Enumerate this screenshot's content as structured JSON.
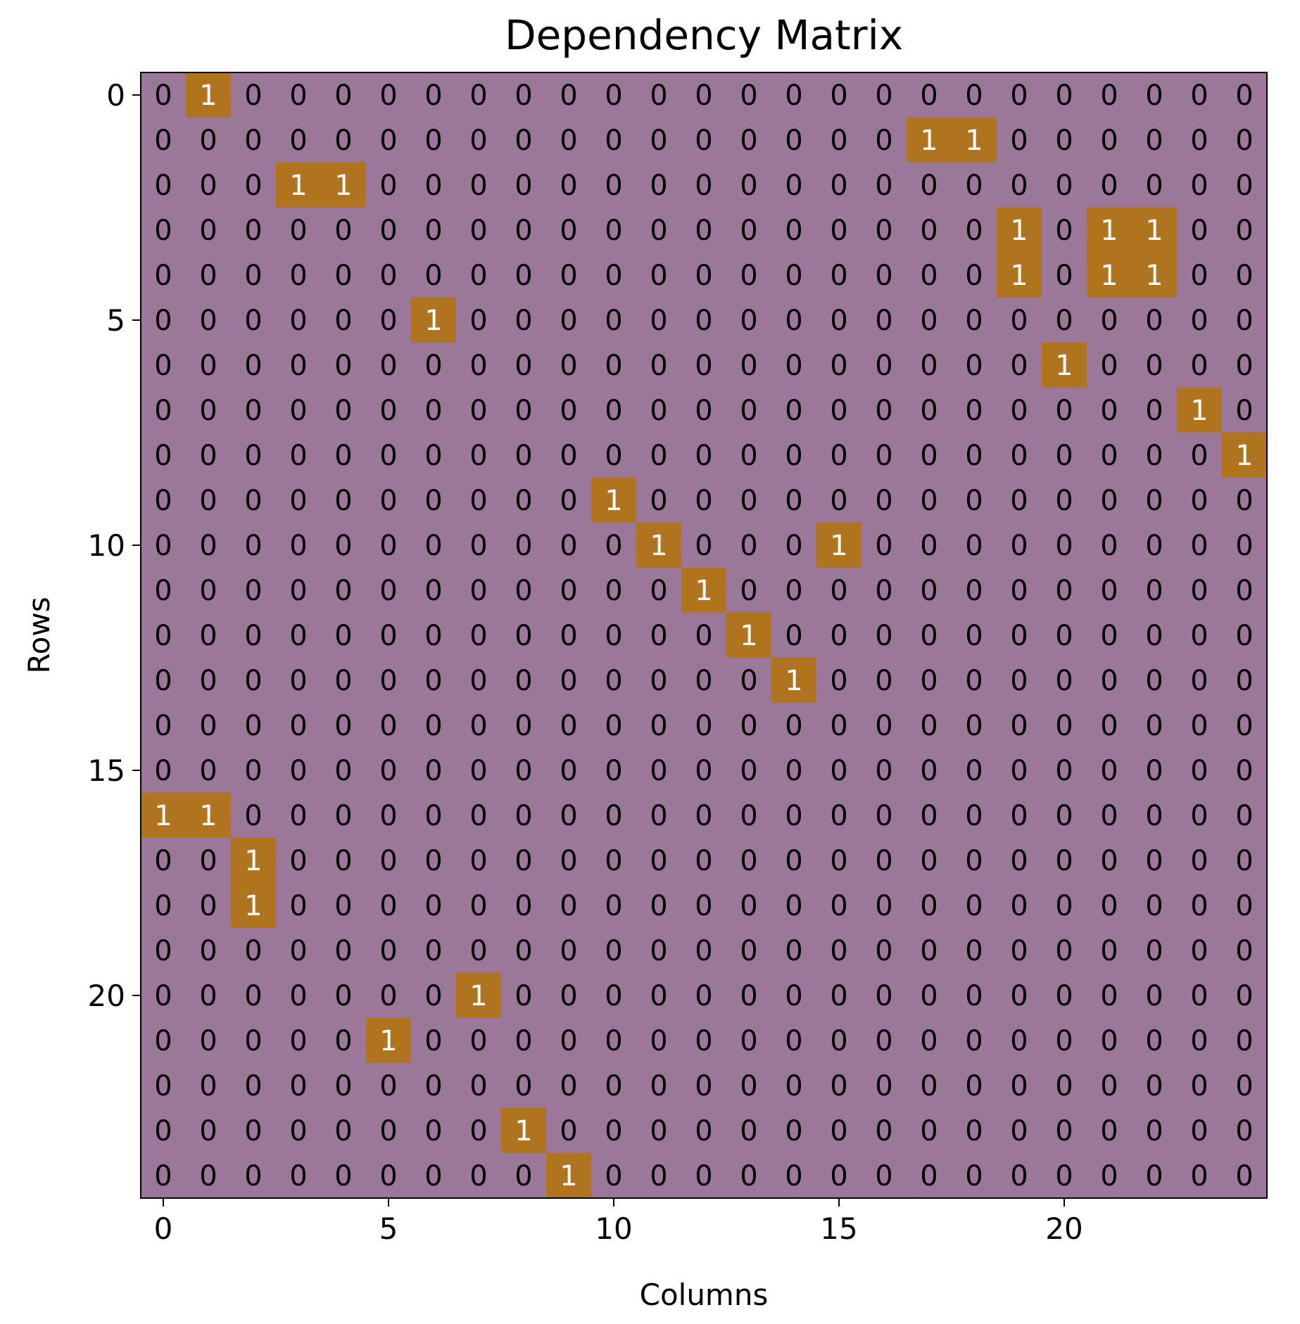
{
  "chart_data": {
    "type": "heatmap",
    "title": "Dependency Matrix",
    "xlabel": "Columns",
    "ylabel": "Rows",
    "x_ticks": [
      "0",
      "5",
      "10",
      "15",
      "20"
    ],
    "y_ticks": [
      "0",
      "5",
      "10",
      "15",
      "20"
    ],
    "n_rows": 25,
    "n_cols": 25,
    "grid": false,
    "colors": {
      "zero": "#9b7799",
      "one": "#b0741e",
      "text_zero": "#000000",
      "text_one": "#ffffff"
    },
    "values": [
      [
        0,
        1,
        0,
        0,
        0,
        0,
        0,
        0,
        0,
        0,
        0,
        0,
        0,
        0,
        0,
        0,
        0,
        0,
        0,
        0,
        0,
        0,
        0,
        0,
        0
      ],
      [
        0,
        0,
        0,
        0,
        0,
        0,
        0,
        0,
        0,
        0,
        0,
        0,
        0,
        0,
        0,
        0,
        0,
        1,
        1,
        0,
        0,
        0,
        0,
        0,
        0
      ],
      [
        0,
        0,
        0,
        1,
        1,
        0,
        0,
        0,
        0,
        0,
        0,
        0,
        0,
        0,
        0,
        0,
        0,
        0,
        0,
        0,
        0,
        0,
        0,
        0,
        0
      ],
      [
        0,
        0,
        0,
        0,
        0,
        0,
        0,
        0,
        0,
        0,
        0,
        0,
        0,
        0,
        0,
        0,
        0,
        0,
        0,
        1,
        0,
        1,
        1,
        0,
        0
      ],
      [
        0,
        0,
        0,
        0,
        0,
        0,
        0,
        0,
        0,
        0,
        0,
        0,
        0,
        0,
        0,
        0,
        0,
        0,
        0,
        1,
        0,
        1,
        1,
        0,
        0
      ],
      [
        0,
        0,
        0,
        0,
        0,
        0,
        1,
        0,
        0,
        0,
        0,
        0,
        0,
        0,
        0,
        0,
        0,
        0,
        0,
        0,
        0,
        0,
        0,
        0,
        0
      ],
      [
        0,
        0,
        0,
        0,
        0,
        0,
        0,
        0,
        0,
        0,
        0,
        0,
        0,
        0,
        0,
        0,
        0,
        0,
        0,
        0,
        1,
        0,
        0,
        0,
        0
      ],
      [
        0,
        0,
        0,
        0,
        0,
        0,
        0,
        0,
        0,
        0,
        0,
        0,
        0,
        0,
        0,
        0,
        0,
        0,
        0,
        0,
        0,
        0,
        0,
        1,
        0
      ],
      [
        0,
        0,
        0,
        0,
        0,
        0,
        0,
        0,
        0,
        0,
        0,
        0,
        0,
        0,
        0,
        0,
        0,
        0,
        0,
        0,
        0,
        0,
        0,
        0,
        1
      ],
      [
        0,
        0,
        0,
        0,
        0,
        0,
        0,
        0,
        0,
        0,
        1,
        0,
        0,
        0,
        0,
        0,
        0,
        0,
        0,
        0,
        0,
        0,
        0,
        0,
        0
      ],
      [
        0,
        0,
        0,
        0,
        0,
        0,
        0,
        0,
        0,
        0,
        0,
        1,
        0,
        0,
        0,
        1,
        0,
        0,
        0,
        0,
        0,
        0,
        0,
        0,
        0
      ],
      [
        0,
        0,
        0,
        0,
        0,
        0,
        0,
        0,
        0,
        0,
        0,
        0,
        1,
        0,
        0,
        0,
        0,
        0,
        0,
        0,
        0,
        0,
        0,
        0,
        0
      ],
      [
        0,
        0,
        0,
        0,
        0,
        0,
        0,
        0,
        0,
        0,
        0,
        0,
        0,
        1,
        0,
        0,
        0,
        0,
        0,
        0,
        0,
        0,
        0,
        0,
        0
      ],
      [
        0,
        0,
        0,
        0,
        0,
        0,
        0,
        0,
        0,
        0,
        0,
        0,
        0,
        0,
        1,
        0,
        0,
        0,
        0,
        0,
        0,
        0,
        0,
        0,
        0
      ],
      [
        0,
        0,
        0,
        0,
        0,
        0,
        0,
        0,
        0,
        0,
        0,
        0,
        0,
        0,
        0,
        0,
        0,
        0,
        0,
        0,
        0,
        0,
        0,
        0,
        0
      ],
      [
        0,
        0,
        0,
        0,
        0,
        0,
        0,
        0,
        0,
        0,
        0,
        0,
        0,
        0,
        0,
        0,
        0,
        0,
        0,
        0,
        0,
        0,
        0,
        0,
        0
      ],
      [
        1,
        1,
        0,
        0,
        0,
        0,
        0,
        0,
        0,
        0,
        0,
        0,
        0,
        0,
        0,
        0,
        0,
        0,
        0,
        0,
        0,
        0,
        0,
        0,
        0
      ],
      [
        0,
        0,
        1,
        0,
        0,
        0,
        0,
        0,
        0,
        0,
        0,
        0,
        0,
        0,
        0,
        0,
        0,
        0,
        0,
        0,
        0,
        0,
        0,
        0,
        0
      ],
      [
        0,
        0,
        1,
        0,
        0,
        0,
        0,
        0,
        0,
        0,
        0,
        0,
        0,
        0,
        0,
        0,
        0,
        0,
        0,
        0,
        0,
        0,
        0,
        0,
        0
      ],
      [
        0,
        0,
        0,
        0,
        0,
        0,
        0,
        0,
        0,
        0,
        0,
        0,
        0,
        0,
        0,
        0,
        0,
        0,
        0,
        0,
        0,
        0,
        0,
        0,
        0
      ],
      [
        0,
        0,
        0,
        0,
        0,
        0,
        0,
        1,
        0,
        0,
        0,
        0,
        0,
        0,
        0,
        0,
        0,
        0,
        0,
        0,
        0,
        0,
        0,
        0,
        0
      ],
      [
        0,
        0,
        0,
        0,
        0,
        1,
        0,
        0,
        0,
        0,
        0,
        0,
        0,
        0,
        0,
        0,
        0,
        0,
        0,
        0,
        0,
        0,
        0,
        0,
        0
      ],
      [
        0,
        0,
        0,
        0,
        0,
        0,
        0,
        0,
        0,
        0,
        0,
        0,
        0,
        0,
        0,
        0,
        0,
        0,
        0,
        0,
        0,
        0,
        0,
        0,
        0
      ],
      [
        0,
        0,
        0,
        0,
        0,
        0,
        0,
        0,
        1,
        0,
        0,
        0,
        0,
        0,
        0,
        0,
        0,
        0,
        0,
        0,
        0,
        0,
        0,
        0,
        0
      ],
      [
        0,
        0,
        0,
        0,
        0,
        0,
        0,
        0,
        0,
        1,
        0,
        0,
        0,
        0,
        0,
        0,
        0,
        0,
        0,
        0,
        0,
        0,
        0,
        0,
        0
      ]
    ]
  }
}
